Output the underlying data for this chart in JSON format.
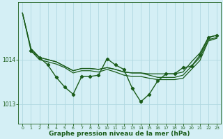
{
  "background_color": "#d4eff5",
  "grid_color": "#b0d8e0",
  "line_color": "#1a5c1a",
  "marker_color": "#1a5c1a",
  "xlabel": "Graphe pression niveau de la mer (hPa)",
  "xlabel_fontsize": 6.5,
  "xlim": [
    -0.5,
    23.5
  ],
  "ylim": [
    1012.55,
    1015.3
  ],
  "yticks": [
    1013,
    1014
  ],
  "xticks": [
    0,
    1,
    2,
    3,
    4,
    5,
    6,
    7,
    8,
    9,
    10,
    11,
    12,
    13,
    14,
    15,
    16,
    17,
    18,
    19,
    20,
    21,
    22,
    23
  ],
  "series": [
    {
      "x": [
        0,
        1,
        2,
        3,
        4,
        5,
        6,
        7,
        8,
        9,
        10,
        11,
        12,
        13,
        14,
        15,
        16,
        17,
        18,
        19,
        20,
        21,
        22,
        23
      ],
      "y": [
        1015.05,
        1014.25,
        1014.05,
        1014.0,
        1013.95,
        1013.85,
        1013.75,
        1013.8,
        1013.8,
        1013.78,
        1013.82,
        1013.78,
        1013.72,
        1013.7,
        1013.7,
        1013.68,
        1013.68,
        1013.68,
        1013.68,
        1013.72,
        1013.95,
        1014.15,
        1014.5,
        1014.55
      ],
      "has_markers": false,
      "linewidth": 0.9
    },
    {
      "x": [
        0,
        1,
        2,
        3,
        4,
        5,
        6,
        7,
        8,
        9,
        10,
        11,
        12,
        13,
        14,
        15,
        16,
        17,
        18,
        19,
        20,
        21,
        22,
        23
      ],
      "y": [
        1015.05,
        1014.25,
        1014.05,
        1014.0,
        1013.95,
        1013.85,
        1013.75,
        1013.8,
        1013.8,
        1013.78,
        1013.82,
        1013.78,
        1013.72,
        1013.7,
        1013.7,
        1013.65,
        1013.6,
        1013.6,
        1013.6,
        1013.65,
        1013.85,
        1014.05,
        1014.45,
        1014.5
      ],
      "has_markers": false,
      "linewidth": 0.9
    },
    {
      "x": [
        0,
        1,
        2,
        3,
        4,
        5,
        6,
        7,
        8,
        9,
        10,
        11,
        12,
        13,
        14,
        15,
        16,
        17,
        18,
        19,
        20,
        21,
        22,
        23
      ],
      "y": [
        1015.05,
        1014.2,
        1014.0,
        1013.95,
        1013.9,
        1013.82,
        1013.7,
        1013.75,
        1013.75,
        1013.72,
        1013.78,
        1013.72,
        1013.65,
        1013.62,
        1013.62,
        1013.58,
        1013.55,
        1013.55,
        1013.55,
        1013.58,
        1013.78,
        1013.98,
        1014.42,
        1014.48
      ],
      "has_markers": false,
      "linewidth": 0.9
    },
    {
      "x": [
        1,
        2,
        3,
        4,
        5,
        6,
        7,
        8,
        9,
        10,
        11,
        12,
        13,
        14,
        15,
        16,
        17,
        18,
        19,
        20,
        21,
        22,
        23
      ],
      "y": [
        1014.2,
        1014.05,
        1013.88,
        1013.6,
        1013.38,
        1013.22,
        1013.62,
        1013.62,
        1013.65,
        1014.02,
        1013.88,
        1013.78,
        1013.35,
        1013.05,
        1013.22,
        1013.52,
        1013.68,
        1013.68,
        1013.82,
        1013.85,
        1014.1,
        1014.5,
        1014.55
      ],
      "has_markers": true,
      "linewidth": 1.0
    }
  ]
}
